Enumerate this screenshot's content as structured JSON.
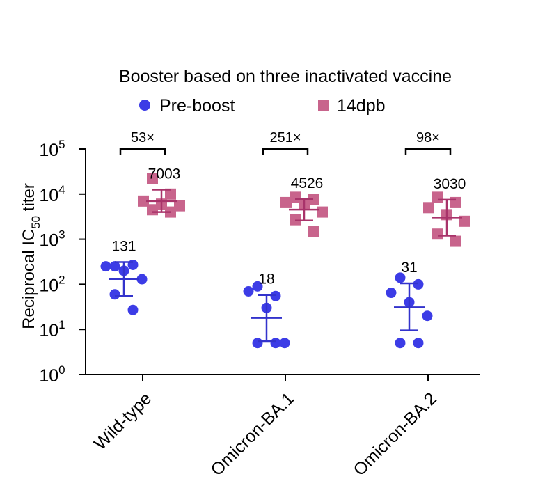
{
  "chart_data": {
    "type": "scatter",
    "title": "Booster based on three inactivated vaccine",
    "xlabel": "",
    "ylabel_main": "Reciprocal IC",
    "ylabel_sub": "50",
    "ylabel_tail": " titer",
    "yscale": "log10",
    "ylim_exp": [
      0,
      5
    ],
    "yticks": [
      {
        "base": "10",
        "exp": "0",
        "value": 1
      },
      {
        "base": "10",
        "exp": "1",
        "value": 10
      },
      {
        "base": "10",
        "exp": "2",
        "value": 100
      },
      {
        "base": "10",
        "exp": "3",
        "value": 1000
      },
      {
        "base": "10",
        "exp": "4",
        "value": 10000
      },
      {
        "base": "10",
        "exp": "5",
        "value": 100000
      }
    ],
    "categories": [
      "Wild-type",
      "Omicron-BA.1",
      "Omicron-BA.2"
    ],
    "series": [
      {
        "name": "Pre-boost",
        "marker": "circle",
        "color": "#3c3ce6",
        "geomean": [
          131,
          18,
          31
        ],
        "geomean_labels": [
          "131",
          "18",
          "31"
        ],
        "error_low": [
          55,
          5.5,
          9.5
        ],
        "error_high": [
          310,
          58,
          105
        ],
        "points": [
          [
            250,
            270,
            250,
            200,
            130,
            60,
            27
          ],
          [
            90,
            55,
            70,
            30,
            5,
            5,
            5
          ],
          [
            140,
            100,
            65,
            40,
            20,
            5,
            5
          ]
        ]
      },
      {
        "name": "14dpb",
        "marker": "square",
        "color": "#c8648c",
        "geomean": [
          7003,
          4526,
          3030
        ],
        "geomean_labels": [
          "7003",
          "4526",
          "3030"
        ],
        "error_low": [
          4000,
          2600,
          1200
        ],
        "error_high": [
          12500,
          7800,
          7500
        ],
        "points": [
          [
            22000,
            10000,
            7000,
            6000,
            5500,
            4500,
            4000
          ],
          [
            8500,
            7500,
            6500,
            6000,
            4000,
            2700,
            1500
          ],
          [
            8500,
            6500,
            5000,
            3500,
            2500,
            1300,
            900
          ]
        ]
      }
    ],
    "fold_changes": [
      "53×",
      "251×",
      "98×"
    ]
  }
}
